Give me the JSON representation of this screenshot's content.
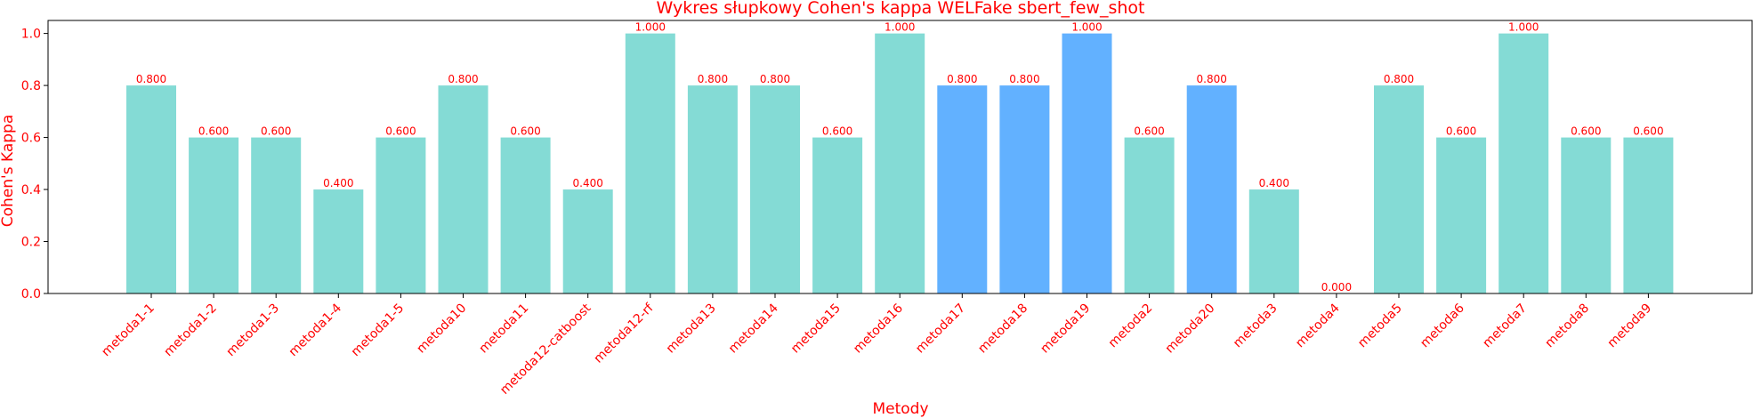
{
  "chart_data": {
    "type": "bar",
    "title": "Wykres słupkowy Cohen's kappa WELFake sbert_few_shot",
    "xlabel": "Metody",
    "ylabel": "Cohen's Kappa",
    "ylim": [
      0,
      1.05
    ],
    "yticks": [
      "0.0",
      "0.2",
      "0.4",
      "0.6",
      "0.8",
      "1.0"
    ],
    "grid": false,
    "categories": [
      "metoda1-1",
      "metoda1-2",
      "metoda1-3",
      "metoda1-4",
      "metoda1-5",
      "metoda10",
      "metoda11",
      "metoda12-catboost",
      "metoda12-rf",
      "metoda13",
      "metoda14",
      "metoda15",
      "metoda16",
      "metoda17",
      "metoda18",
      "metoda19",
      "metoda2",
      "metoda20",
      "metoda3",
      "metoda4",
      "metoda5",
      "metoda6",
      "metoda7",
      "metoda8",
      "metoda9"
    ],
    "values": [
      0.8,
      0.6,
      0.6,
      0.4,
      0.6,
      0.8,
      0.6,
      0.4,
      1.0,
      0.8,
      0.8,
      0.6,
      1.0,
      0.8,
      0.8,
      1.0,
      0.6,
      0.8,
      0.4,
      0.0,
      0.8,
      0.6,
      1.0,
      0.6,
      0.6
    ],
    "value_labels": [
      "0.800",
      "0.600",
      "0.600",
      "0.400",
      "0.600",
      "0.800",
      "0.600",
      "0.400",
      "1.000",
      "0.800",
      "0.800",
      "0.600",
      "1.000",
      "0.800",
      "0.800",
      "1.000",
      "0.600",
      "0.800",
      "0.400",
      "0.000",
      "0.800",
      "0.600",
      "1.000",
      "0.600",
      "0.600"
    ],
    "highlighted": [
      "metoda17",
      "metoda18",
      "metoda19",
      "metoda20"
    ],
    "colors": {
      "bar": "#84dbd5",
      "highlight": "#62b1ff",
      "text": "#ff0000",
      "axis": "#000000"
    }
  }
}
